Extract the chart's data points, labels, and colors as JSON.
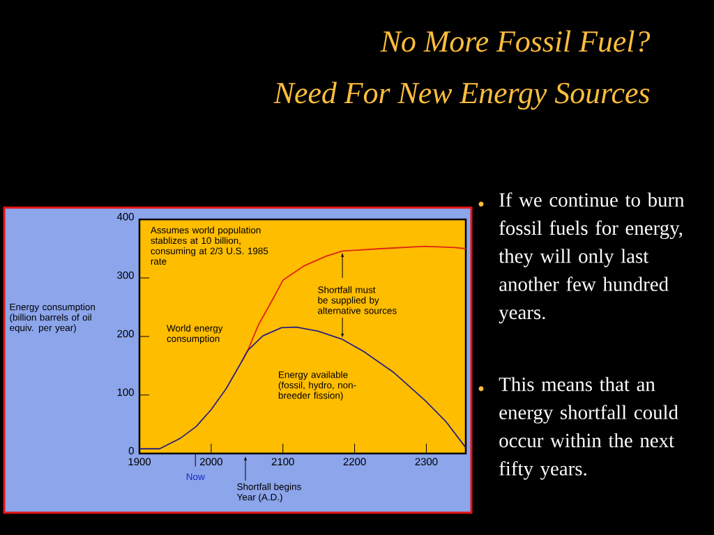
{
  "chart_data": {
    "type": "line",
    "title": "No More Fossil Fuel?",
    "subtitle": "Need For New Energy Sources",
    "ylabel": "Energy consumption (billion barrels of oil equiv. per year)",
    "xlabel": "Year (A.D.)",
    "xlim": [
      1900,
      2355
    ],
    "xticks": [
      1900,
      2000,
      2100,
      2200,
      2300
    ],
    "ylim": [
      0,
      400
    ],
    "yticks": [
      0,
      100,
      200,
      300,
      400
    ],
    "grid": false,
    "legend": false,
    "marker": "none",
    "line_style": "solid",
    "series": [
      {
        "name": "World energy consumption",
        "color": "#e02418",
        "x": [
          2043,
          2051,
          2066,
          2087,
          2100,
          2130,
          2160,
          2183,
          2236,
          2298,
          2340,
          2355
        ],
        "values": [
          158,
          176,
          220,
          266,
          296,
          321,
          337,
          346,
          350,
          354,
          352,
          350
        ]
      },
      {
        "name": "Energy available (fossil, hydro, non-breeder fission)",
        "color": "#2a2080",
        "x": [
          1900,
          1928,
          1957,
          1979,
          2000,
          2021,
          2043,
          2051,
          2072,
          2098,
          2119,
          2149,
          2183,
          2213,
          2255,
          2298,
          2327,
          2355
        ],
        "values": [
          8,
          8,
          26,
          46,
          75,
          111,
          158,
          176,
          201,
          215,
          216,
          209,
          195,
          174,
          138,
          91,
          55,
          10
        ]
      }
    ],
    "annotations": [
      "Assumes world population stablizes at 10 billion, consuming at 2/3 U.S. 1985 rate",
      {
        "text": "Shortfall must be supplied by alternative sources",
        "x": 2183,
        "y": 346
      },
      "Now",
      "Shortfall begins",
      "If we continue to burn fossil fuels for energy, they will only last another few hundred years.",
      "This means that an energy shortfall could occur within the next fifty years."
    ]
  }
}
